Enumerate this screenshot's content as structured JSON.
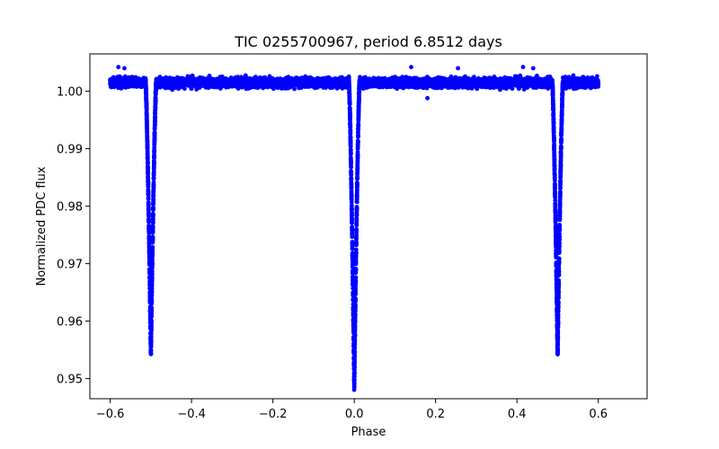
{
  "chart_data": {
    "type": "scatter",
    "title": "TIC 0255700967, period 6.8512 days",
    "xlabel": "Phase",
    "ylabel": "Normalized PDC flux",
    "xlim": [
      -0.65,
      0.72
    ],
    "ylim": [
      0.9465,
      1.0065
    ],
    "xticks": [
      -0.6,
      -0.4,
      -0.2,
      0.0,
      0.2,
      0.4,
      0.6
    ],
    "xtick_labels": [
      "−0.6",
      "−0.4",
      "−0.2",
      "0.0",
      "0.2",
      "0.4",
      "0.6"
    ],
    "yticks": [
      0.95,
      0.96,
      0.97,
      0.98,
      0.99,
      1.0
    ],
    "ytick_labels": [
      "0.95",
      "0.96",
      "0.97",
      "0.98",
      "0.99",
      "1.00"
    ],
    "grid": false,
    "marker_color": "#0000ff",
    "series": [
      {
        "name": "PDC flux",
        "phase_range": [
          -0.6,
          0.6
        ],
        "baseline": 1.0015,
        "baseline_scatter": 0.0012,
        "eclipses": [
          {
            "center": -0.5,
            "min_flux": 0.954,
            "half_width": 0.013
          },
          {
            "center": 0.0,
            "min_flux": 0.9485,
            "half_width": 0.013
          },
          {
            "center": 0.5,
            "min_flux": 0.954,
            "half_width": 0.013
          }
        ],
        "outliers": [
          {
            "x": -0.58,
            "y": 1.0042
          },
          {
            "x": -0.565,
            "y": 1.004
          },
          {
            "x": 0.14,
            "y": 1.0042
          },
          {
            "x": 0.255,
            "y": 1.004
          },
          {
            "x": 0.415,
            "y": 1.0042
          },
          {
            "x": 0.44,
            "y": 1.004
          },
          {
            "x": 0.18,
            "y": 0.9988
          }
        ]
      }
    ]
  }
}
